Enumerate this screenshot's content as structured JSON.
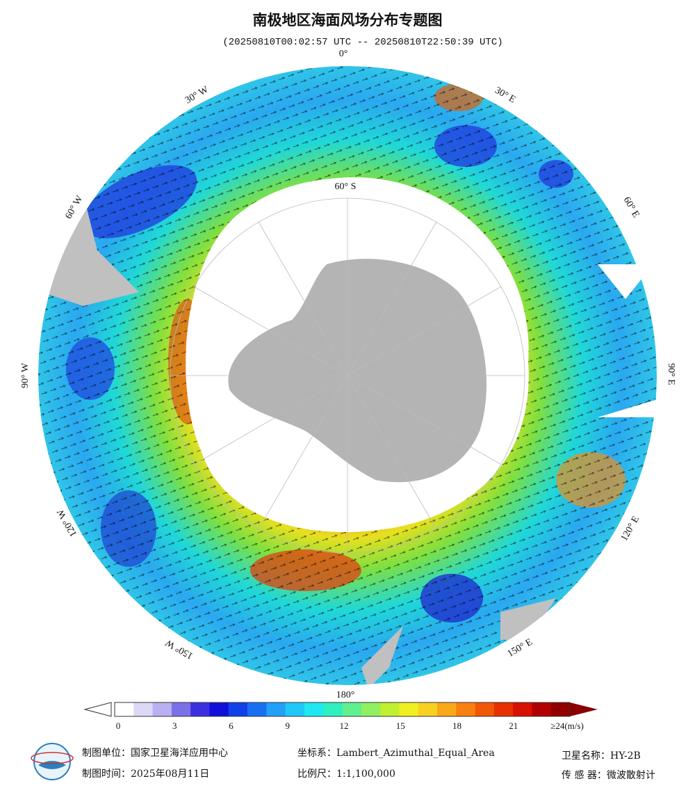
{
  "header": {
    "title": "南极地区海面风场分布专题图",
    "subtitle": "(20250810T00:02:57 UTC -- 20250810T22:50:39 UTC)"
  },
  "map": {
    "longitude_labels": [
      "0°",
      "30° E",
      "60° E",
      "90° E",
      "120° E",
      "150° E",
      "180°",
      "150° W",
      "120° W",
      "90° W",
      "60° W",
      "30° W"
    ],
    "latitude_label": "60° S"
  },
  "colorbar": {
    "ticks": [
      0,
      3,
      6,
      9,
      12,
      15,
      18,
      21
    ],
    "max_label": "≥24(m/s)"
  },
  "footer": {
    "producer": "制图单位：国家卫星海洋应用中心",
    "date": "制图时间：2025年08月11日",
    "projection": "坐标系：Lambert_Azimuthal_Equal_Area",
    "scale": "比例尺：1:1,100,000",
    "satellite": "卫星名称：HY-2B",
    "sensor": "传 感 器：微波散射计"
  }
}
